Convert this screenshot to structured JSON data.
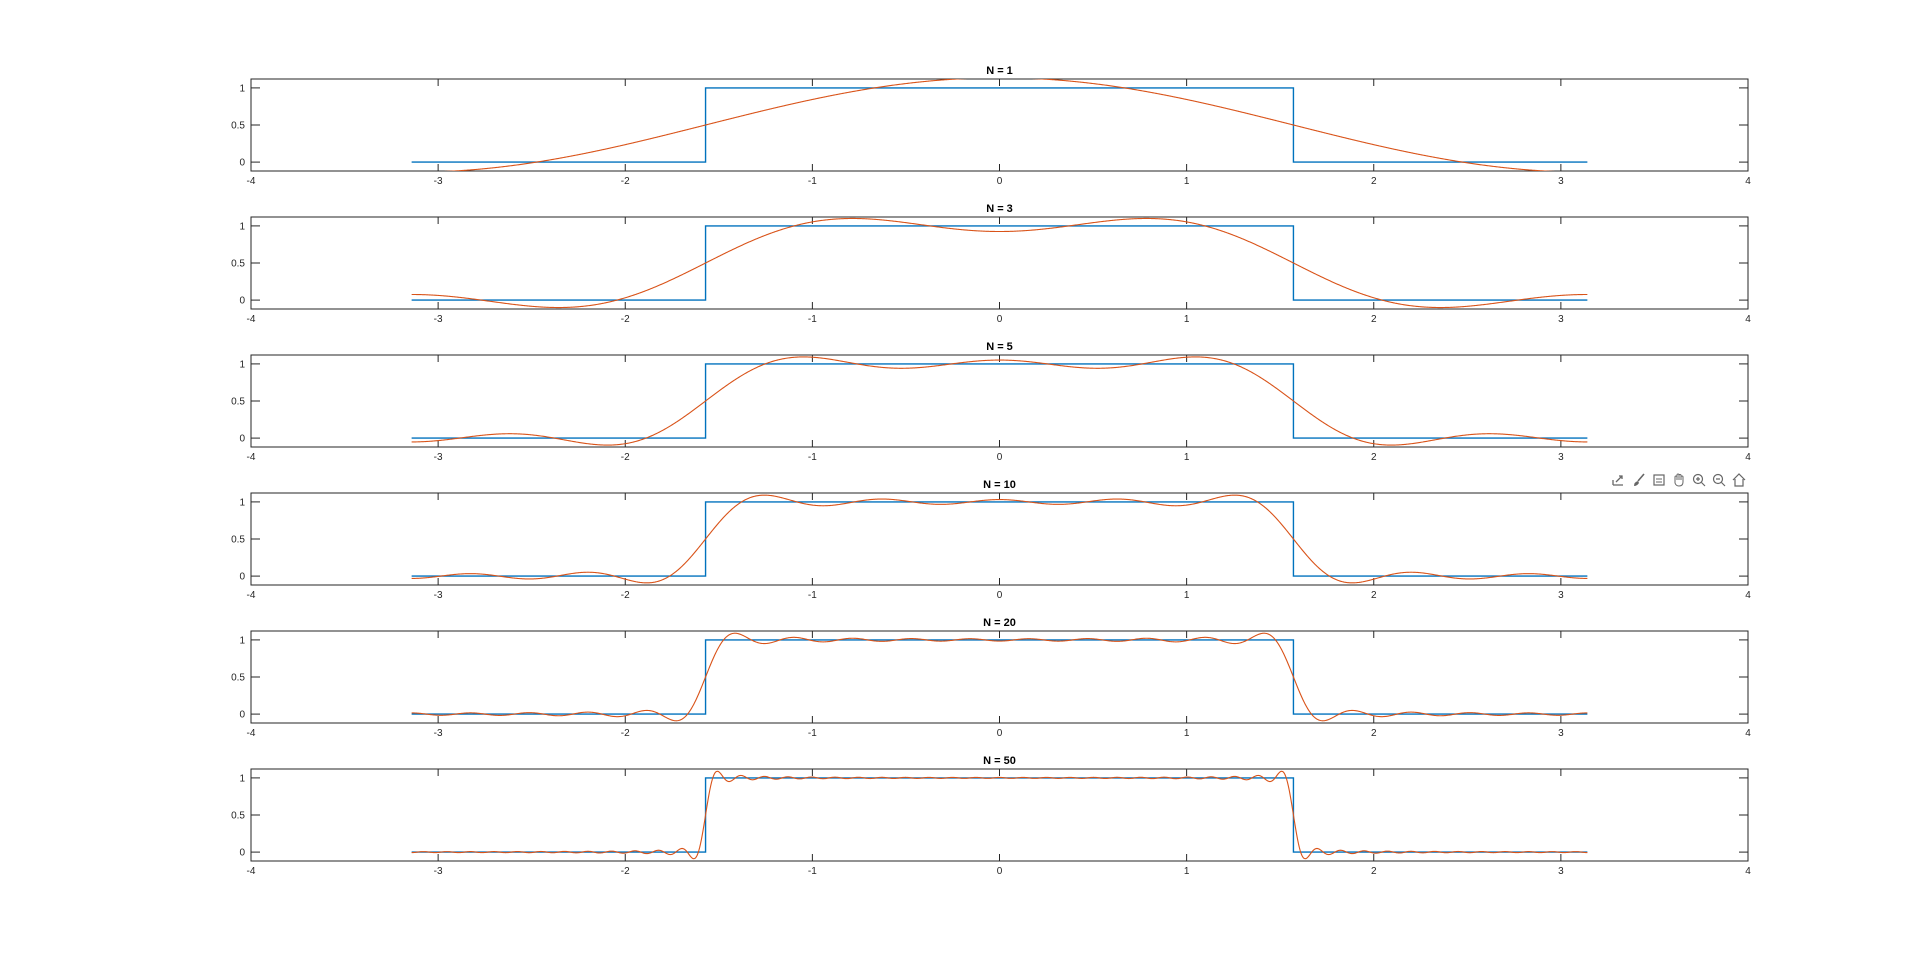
{
  "chart_data": [
    {
      "type": "line",
      "title": "N = 1",
      "N": 1,
      "xlim": [
        -4,
        4
      ],
      "ylim": [
        -0.12,
        1.12
      ],
      "xticks": [
        -4,
        -3,
        -2,
        -1,
        0,
        1,
        2,
        3,
        4
      ],
      "yticks": [
        0,
        0.5,
        1
      ],
      "xtick_labels": [
        "-4",
        "-3",
        "-2",
        "-1",
        "0",
        "1",
        "2",
        "3",
        "4"
      ],
      "ytick_labels": [
        "0",
        "0.5",
        "1"
      ],
      "series": [
        {
          "kind": "square-wave",
          "color": "#0072BD",
          "x": [
            -3.1416,
            -1.5708,
            -1.5708,
            1.5708,
            1.5708,
            3.1416
          ],
          "y": [
            0,
            0,
            1,
            1,
            0,
            0
          ]
        },
        {
          "kind": "fourier-partial-sum",
          "color": "#D95319",
          "x_range": [
            -3.1416,
            3.1416
          ]
        }
      ]
    },
    {
      "type": "line",
      "title": "N = 3",
      "N": 3,
      "xlim": [
        -4,
        4
      ],
      "ylim": [
        -0.12,
        1.12
      ],
      "xticks": [
        -4,
        -3,
        -2,
        -1,
        0,
        1,
        2,
        3,
        4
      ],
      "yticks": [
        0,
        0.5,
        1
      ],
      "xtick_labels": [
        "-4",
        "-3",
        "-2",
        "-1",
        "0",
        "1",
        "2",
        "3",
        "4"
      ],
      "ytick_labels": [
        "0",
        "0.5",
        "1"
      ],
      "series": [
        {
          "kind": "square-wave",
          "color": "#0072BD",
          "x": [
            -3.1416,
            -1.5708,
            -1.5708,
            1.5708,
            1.5708,
            3.1416
          ],
          "y": [
            0,
            0,
            1,
            1,
            0,
            0
          ]
        },
        {
          "kind": "fourier-partial-sum",
          "color": "#D95319",
          "x_range": [
            -3.1416,
            3.1416
          ]
        }
      ]
    },
    {
      "type": "line",
      "title": "N = 5",
      "N": 5,
      "xlim": [
        -4,
        4
      ],
      "ylim": [
        -0.12,
        1.12
      ],
      "xticks": [
        -4,
        -3,
        -2,
        -1,
        0,
        1,
        2,
        3,
        4
      ],
      "yticks": [
        0,
        0.5,
        1
      ],
      "xtick_labels": [
        "-4",
        "-3",
        "-2",
        "-1",
        "0",
        "1",
        "2",
        "3",
        "4"
      ],
      "ytick_labels": [
        "0",
        "0.5",
        "1"
      ],
      "series": [
        {
          "kind": "square-wave",
          "color": "#0072BD",
          "x": [
            -3.1416,
            -1.5708,
            -1.5708,
            1.5708,
            1.5708,
            3.1416
          ],
          "y": [
            0,
            0,
            1,
            1,
            0,
            0
          ]
        },
        {
          "kind": "fourier-partial-sum",
          "color": "#D95319",
          "x_range": [
            -3.1416,
            3.1416
          ]
        }
      ]
    },
    {
      "type": "line",
      "title": "N = 10",
      "N": 10,
      "xlim": [
        -4,
        4
      ],
      "ylim": [
        -0.12,
        1.12
      ],
      "xticks": [
        -4,
        -3,
        -2,
        -1,
        0,
        1,
        2,
        3,
        4
      ],
      "yticks": [
        0,
        0.5,
        1
      ],
      "xtick_labels": [
        "-4",
        "-3",
        "-2",
        "-1",
        "0",
        "1",
        "2",
        "3",
        "4"
      ],
      "ytick_labels": [
        "0",
        "0.5",
        "1"
      ],
      "series": [
        {
          "kind": "square-wave",
          "color": "#0072BD",
          "x": [
            -3.1416,
            -1.5708,
            -1.5708,
            1.5708,
            1.5708,
            3.1416
          ],
          "y": [
            0,
            0,
            1,
            1,
            0,
            0
          ]
        },
        {
          "kind": "fourier-partial-sum",
          "color": "#D95319",
          "x_range": [
            -3.1416,
            3.1416
          ]
        }
      ]
    },
    {
      "type": "line",
      "title": "N = 20",
      "N": 20,
      "xlim": [
        -4,
        4
      ],
      "ylim": [
        -0.12,
        1.12
      ],
      "xticks": [
        -4,
        -3,
        -2,
        -1,
        0,
        1,
        2,
        3,
        4
      ],
      "yticks": [
        0,
        0.5,
        1
      ],
      "xtick_labels": [
        "-4",
        "-3",
        "-2",
        "-1",
        "0",
        "1",
        "2",
        "3",
        "4"
      ],
      "ytick_labels": [
        "0",
        "0.5",
        "1"
      ],
      "series": [
        {
          "kind": "square-wave",
          "color": "#0072BD",
          "x": [
            -3.1416,
            -1.5708,
            -1.5708,
            1.5708,
            1.5708,
            3.1416
          ],
          "y": [
            0,
            0,
            1,
            1,
            0,
            0
          ]
        },
        {
          "kind": "fourier-partial-sum",
          "color": "#D95319",
          "x_range": [
            -3.1416,
            3.1416
          ]
        }
      ]
    },
    {
      "type": "line",
      "title": "N = 50",
      "N": 50,
      "xlim": [
        -4,
        4
      ],
      "ylim": [
        -0.12,
        1.12
      ],
      "xticks": [
        -4,
        -3,
        -2,
        -1,
        0,
        1,
        2,
        3,
        4
      ],
      "yticks": [
        0,
        0.5,
        1
      ],
      "xtick_labels": [
        "-4",
        "-3",
        "-2",
        "-1",
        "0",
        "1",
        "2",
        "3",
        "4"
      ],
      "ytick_labels": [
        "0",
        "0.5",
        "1"
      ],
      "series": [
        {
          "kind": "square-wave",
          "color": "#0072BD",
          "x": [
            -3.1416,
            -1.5708,
            -1.5708,
            1.5708,
            1.5708,
            3.1416
          ],
          "y": [
            0,
            0,
            1,
            1,
            0,
            0
          ]
        },
        {
          "kind": "fourier-partial-sum",
          "color": "#D95319",
          "x_range": [
            -3.1416,
            3.1416
          ]
        }
      ]
    }
  ],
  "toolbar": {
    "icons": [
      "export-icon",
      "brush-icon",
      "datatip-icon",
      "pan-icon",
      "zoom-in-icon",
      "zoom-out-icon",
      "home-icon"
    ]
  },
  "colors": {
    "axes": "#262626",
    "square_wave": "#0072BD",
    "fourier": "#D95319",
    "background": "#ffffff"
  }
}
